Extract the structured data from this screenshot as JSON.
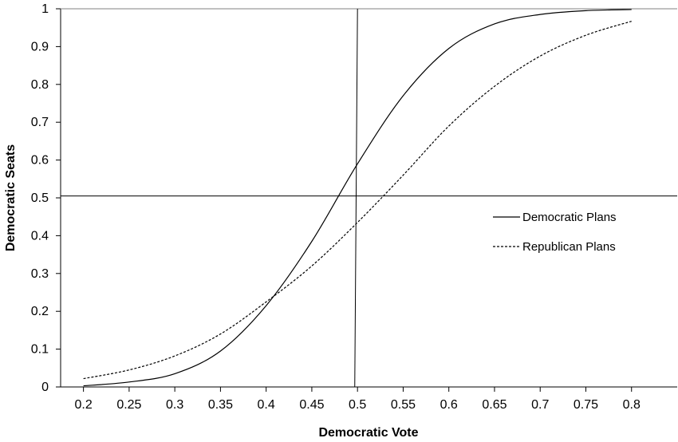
{
  "chart_data": {
    "type": "line",
    "title": "",
    "xlabel": "Democratic Vote",
    "ylabel": "Democratic Seats",
    "xlim": [
      0.175,
      0.85
    ],
    "ylim": [
      0,
      1
    ],
    "x_ticks": [
      "0.2",
      "0.25",
      "0.3",
      "0.35",
      "0.4",
      "0.45",
      "0.5",
      "0.55",
      "0.6",
      "0.65",
      "0.7",
      "0.75",
      "0.8"
    ],
    "y_ticks": [
      "0",
      "0.1",
      "0.2",
      "0.3",
      "0.4",
      "0.5",
      "0.6",
      "0.7",
      "0.8",
      "0.9",
      "1"
    ],
    "grid": false,
    "legend_position": "right",
    "series": [
      {
        "name": "Democratic Plans",
        "style": "solid",
        "color": "#000000",
        "x": [
          0.2,
          0.25,
          0.3,
          0.35,
          0.4,
          0.45,
          0.5,
          0.55,
          0.6,
          0.65,
          0.7,
          0.75,
          0.8
        ],
        "y": [
          0.003,
          0.013,
          0.035,
          0.095,
          0.215,
          0.385,
          0.59,
          0.77,
          0.895,
          0.96,
          0.985,
          0.995,
          0.998
        ]
      },
      {
        "name": "Republican Plans",
        "style": "dashed",
        "color": "#000000",
        "x": [
          0.2,
          0.25,
          0.3,
          0.35,
          0.4,
          0.45,
          0.5,
          0.55,
          0.6,
          0.65,
          0.7,
          0.75,
          0.8
        ],
        "y": [
          0.022,
          0.045,
          0.082,
          0.14,
          0.225,
          0.32,
          0.435,
          0.56,
          0.69,
          0.795,
          0.875,
          0.93,
          0.967
        ]
      }
    ],
    "reference_lines": [
      {
        "orientation": "horizontal",
        "y": 0.505
      },
      {
        "orientation": "near-vertical",
        "x_bottom": 0.497,
        "x_top": 0.5
      }
    ]
  }
}
